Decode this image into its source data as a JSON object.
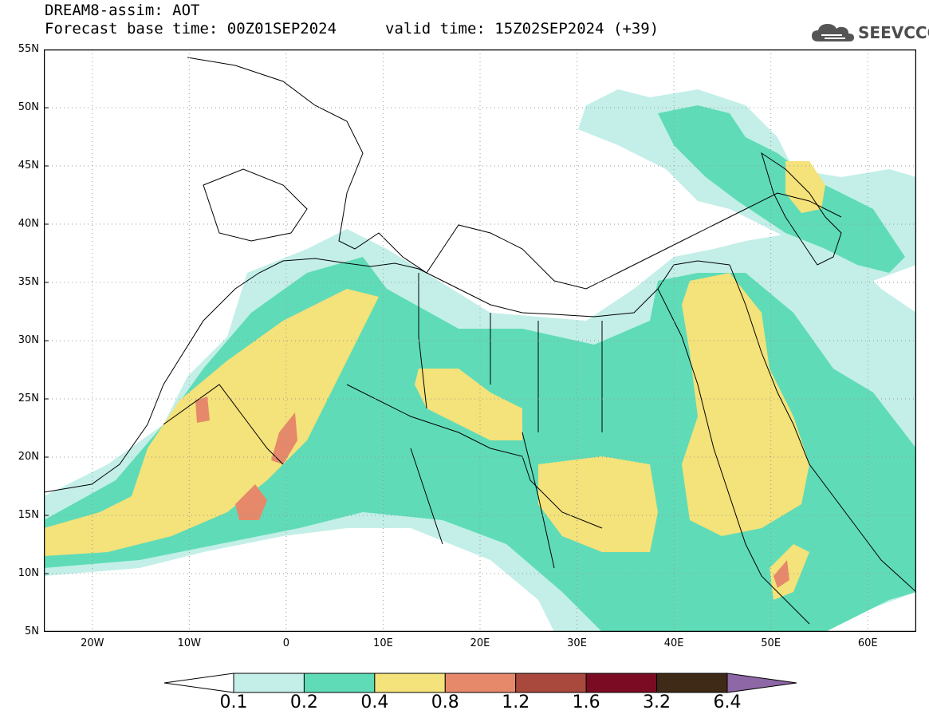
{
  "title": {
    "line1": "DREAM8-assim: AOT",
    "line2": "Forecast base time: 00Z01SEP2024",
    "line3": "valid time: 15Z02SEP2024 (+39)"
  },
  "logo": {
    "text": "SEEVCCC",
    "icon": "cloud-logo-icon"
  },
  "axes": {
    "lat_labels": [
      "5N",
      "10N",
      "15N",
      "20N",
      "25N",
      "30N",
      "35N",
      "40N",
      "45N",
      "50N",
      "55N"
    ],
    "lat_values": [
      5,
      10,
      15,
      20,
      25,
      30,
      35,
      40,
      45,
      50,
      55
    ],
    "lon_labels": [
      "20W",
      "10W",
      "0",
      "10E",
      "20E",
      "30E",
      "40E",
      "50E",
      "60E"
    ],
    "lon_values": [
      -20,
      -10,
      0,
      10,
      20,
      30,
      40,
      50,
      60
    ],
    "lon_range": [
      -25,
      65
    ],
    "lat_range": [
      5,
      55
    ],
    "grid": "dotted"
  },
  "colorbar": {
    "labels": [
      "0.1",
      "0.2",
      "0.4",
      "0.8",
      "1.2",
      "1.6",
      "3.2",
      "6.4"
    ],
    "colors": [
      "#ffffff",
      "#c3efe8",
      "#5fdcb7",
      "#f4e27a",
      "#e5896a",
      "#a9493d",
      "#7a0b22",
      "#3e2a16",
      "#8e67a6"
    ]
  }
}
